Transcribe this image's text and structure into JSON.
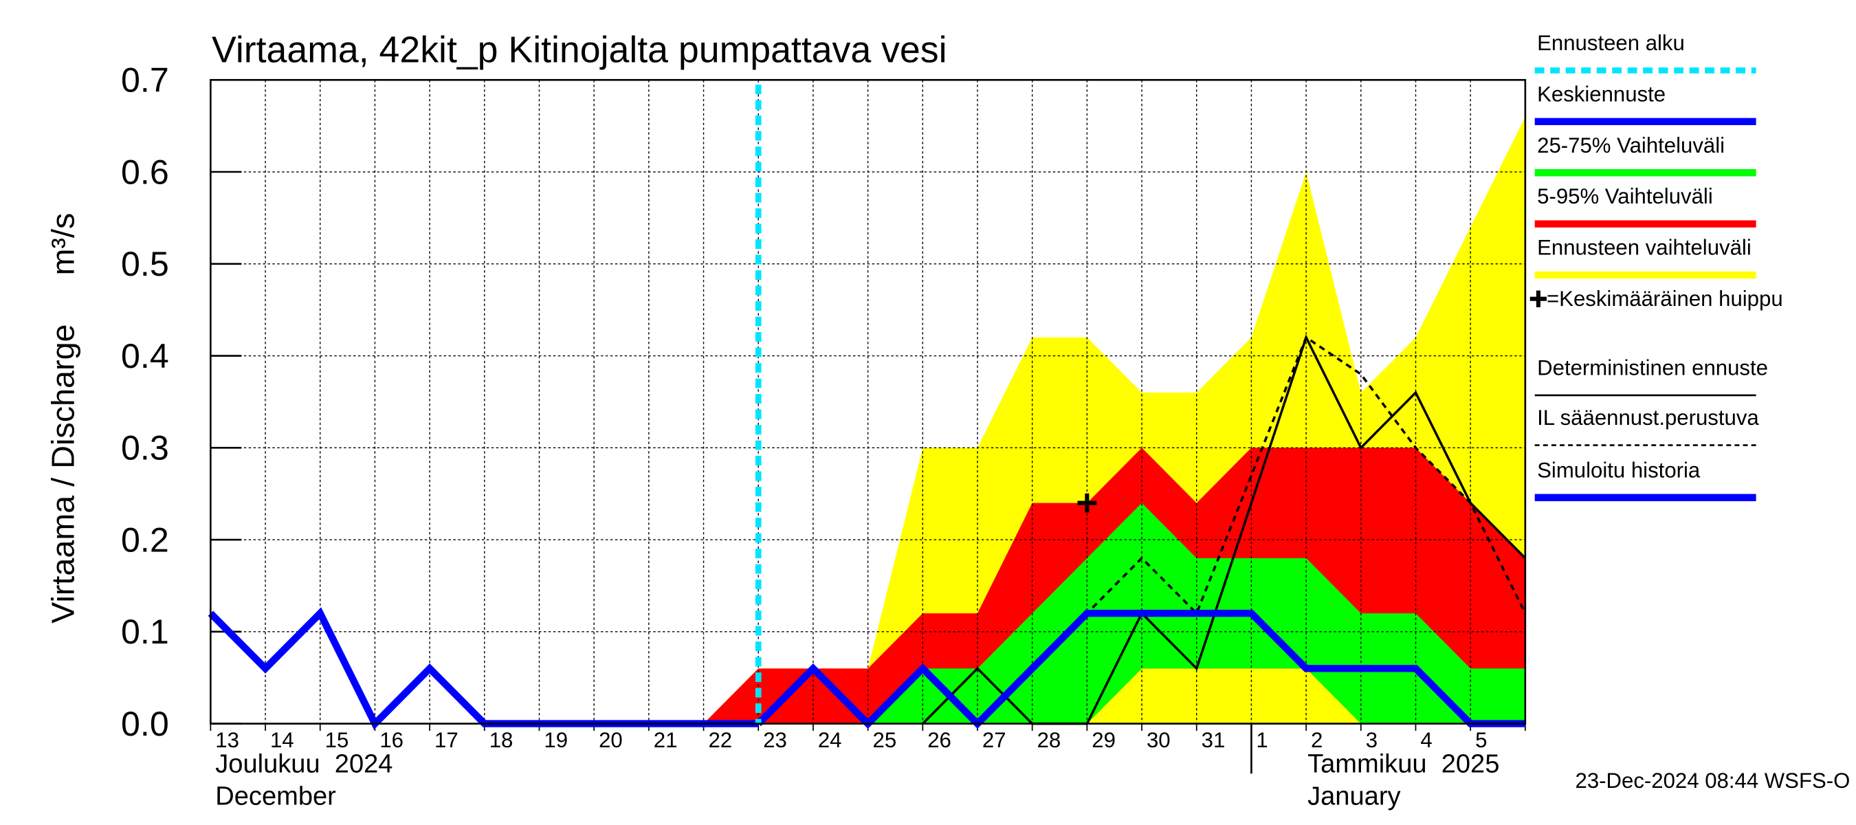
{
  "chart_data": {
    "type": "band-line",
    "title": "Virtaama, 42kit_p Kitinojalta pumpattava vesi",
    "y_label": "Virtaama / Discharge",
    "y_unit": "m³/s",
    "month_labels": [
      [
        "Joulukuu  2024",
        "December"
      ],
      [
        "Tammikuu  2025",
        "January"
      ]
    ],
    "footer": "23-Dec-2024 08:44 WSFS-O",
    "categories": [
      "13",
      "14",
      "15",
      "16",
      "17",
      "18",
      "19",
      "20",
      "21",
      "22",
      "23",
      "24",
      "25",
      "26",
      "27",
      "28",
      "29",
      "30",
      "31",
      "1",
      "2",
      "3",
      "4",
      "5",
      null
    ],
    "ylim": [
      0,
      0.7
    ],
    "yticks": [
      {
        "value": 0,
        "label": "0.0"
      },
      0.1,
      0.2,
      0.3,
      0.4,
      0.5,
      0.6,
      0.7
    ],
    "grid": true,
    "series": [
      {
        "name": "Ennusteen alku",
        "kind": "vline",
        "color": "#00e5ff",
        "category": "23"
      },
      {
        "name": "Keskiennuste",
        "kind": "line",
        "color": "#0000ff",
        "width": 6,
        "values": [
          null,
          null,
          null,
          null,
          null,
          null,
          null,
          null,
          null,
          null,
          0,
          0.06,
          0,
          0.06,
          0,
          0.06,
          0.12,
          0.12,
          0.12,
          0.12,
          0.06,
          0.06,
          0.06,
          0,
          0
        ]
      },
      {
        "name": "25-75% Vaihteluväli",
        "kind": "band",
        "color": "#00ff00",
        "lower": [
          null,
          null,
          null,
          null,
          null,
          null,
          null,
          null,
          null,
          null,
          null,
          null,
          0,
          0,
          0,
          0,
          0,
          0.06,
          0.06,
          0.06,
          0.06,
          0,
          0,
          0,
          0
        ],
        "upper": [
          null,
          null,
          null,
          null,
          null,
          null,
          null,
          null,
          null,
          null,
          null,
          null,
          0,
          0.06,
          0.06,
          0.12,
          0.18,
          0.24,
          0.18,
          0.18,
          0.18,
          0.12,
          0.12,
          0.06,
          0.06
        ]
      },
      {
        "name": "5-95% Vaihteluväli",
        "kind": "band",
        "color": "#ff0000",
        "lower": [
          null,
          null,
          null,
          null,
          null,
          null,
          null,
          null,
          null,
          0,
          0,
          0,
          0,
          0,
          0,
          0,
          0,
          0.06,
          0.06,
          0.06,
          0.06,
          0,
          0,
          0,
          0
        ],
        "upper": [
          null,
          null,
          null,
          null,
          null,
          null,
          null,
          null,
          null,
          0,
          0.06,
          0.06,
          0.06,
          0.12,
          0.12,
          0.24,
          0.24,
          0.3,
          0.24,
          0.3,
          0.3,
          0.3,
          0.3,
          0.24,
          0.18
        ]
      },
      {
        "name": "Ennusteen vaihteluväli",
        "kind": "band",
        "color": "#ffff00",
        "lower": [
          null,
          null,
          null,
          null,
          null,
          null,
          null,
          null,
          null,
          0,
          0,
          0,
          0,
          0,
          0,
          0,
          0,
          0,
          0,
          0,
          0,
          0,
          0,
          0,
          0
        ],
        "upper": [
          null,
          null,
          null,
          null,
          null,
          null,
          null,
          null,
          null,
          0,
          0.06,
          0.06,
          0.06,
          0.3,
          0.3,
          0.42,
          0.42,
          0.36,
          0.36,
          0.42,
          0.6,
          0.36,
          0.42,
          0.54,
          0.66
        ]
      },
      {
        "name": "=Keskimääräinen huippu",
        "kind": "marker",
        "color": "#000000",
        "values": [
          null,
          null,
          null,
          null,
          null,
          null,
          null,
          null,
          null,
          null,
          null,
          null,
          null,
          null,
          null,
          null,
          0.24,
          null,
          null,
          null,
          null,
          null,
          null,
          null,
          null
        ]
      },
      {
        "name": "Deterministinen ennuste",
        "kind": "line",
        "color": "#000000",
        "width": 2,
        "values": [
          null,
          null,
          null,
          null,
          null,
          null,
          null,
          null,
          null,
          null,
          null,
          null,
          null,
          0,
          0.06,
          0,
          0,
          0.12,
          0.06,
          0.24,
          0.42,
          0.3,
          0.36,
          0.24,
          0.18
        ]
      },
      {
        "name": "IL sääennust.perustuva",
        "kind": "line",
        "color": "#000000",
        "width": 2,
        "dashed": true,
        "values": [
          null,
          null,
          null,
          null,
          null,
          null,
          null,
          null,
          null,
          null,
          null,
          null,
          null,
          null,
          null,
          0.06,
          0.12,
          0.18,
          0.12,
          0.27,
          0.42,
          0.38,
          0.3,
          0.24,
          0.12
        ]
      },
      {
        "name": "Simuloitu historia",
        "kind": "line",
        "color": "#0000ff",
        "width": 6,
        "values": [
          0.12,
          0.06,
          0.12,
          0,
          0.06,
          0,
          0,
          0,
          0,
          0,
          0,
          null,
          null,
          null,
          null,
          null,
          null,
          null,
          null,
          null,
          null,
          null,
          null,
          null,
          null
        ]
      }
    ]
  }
}
